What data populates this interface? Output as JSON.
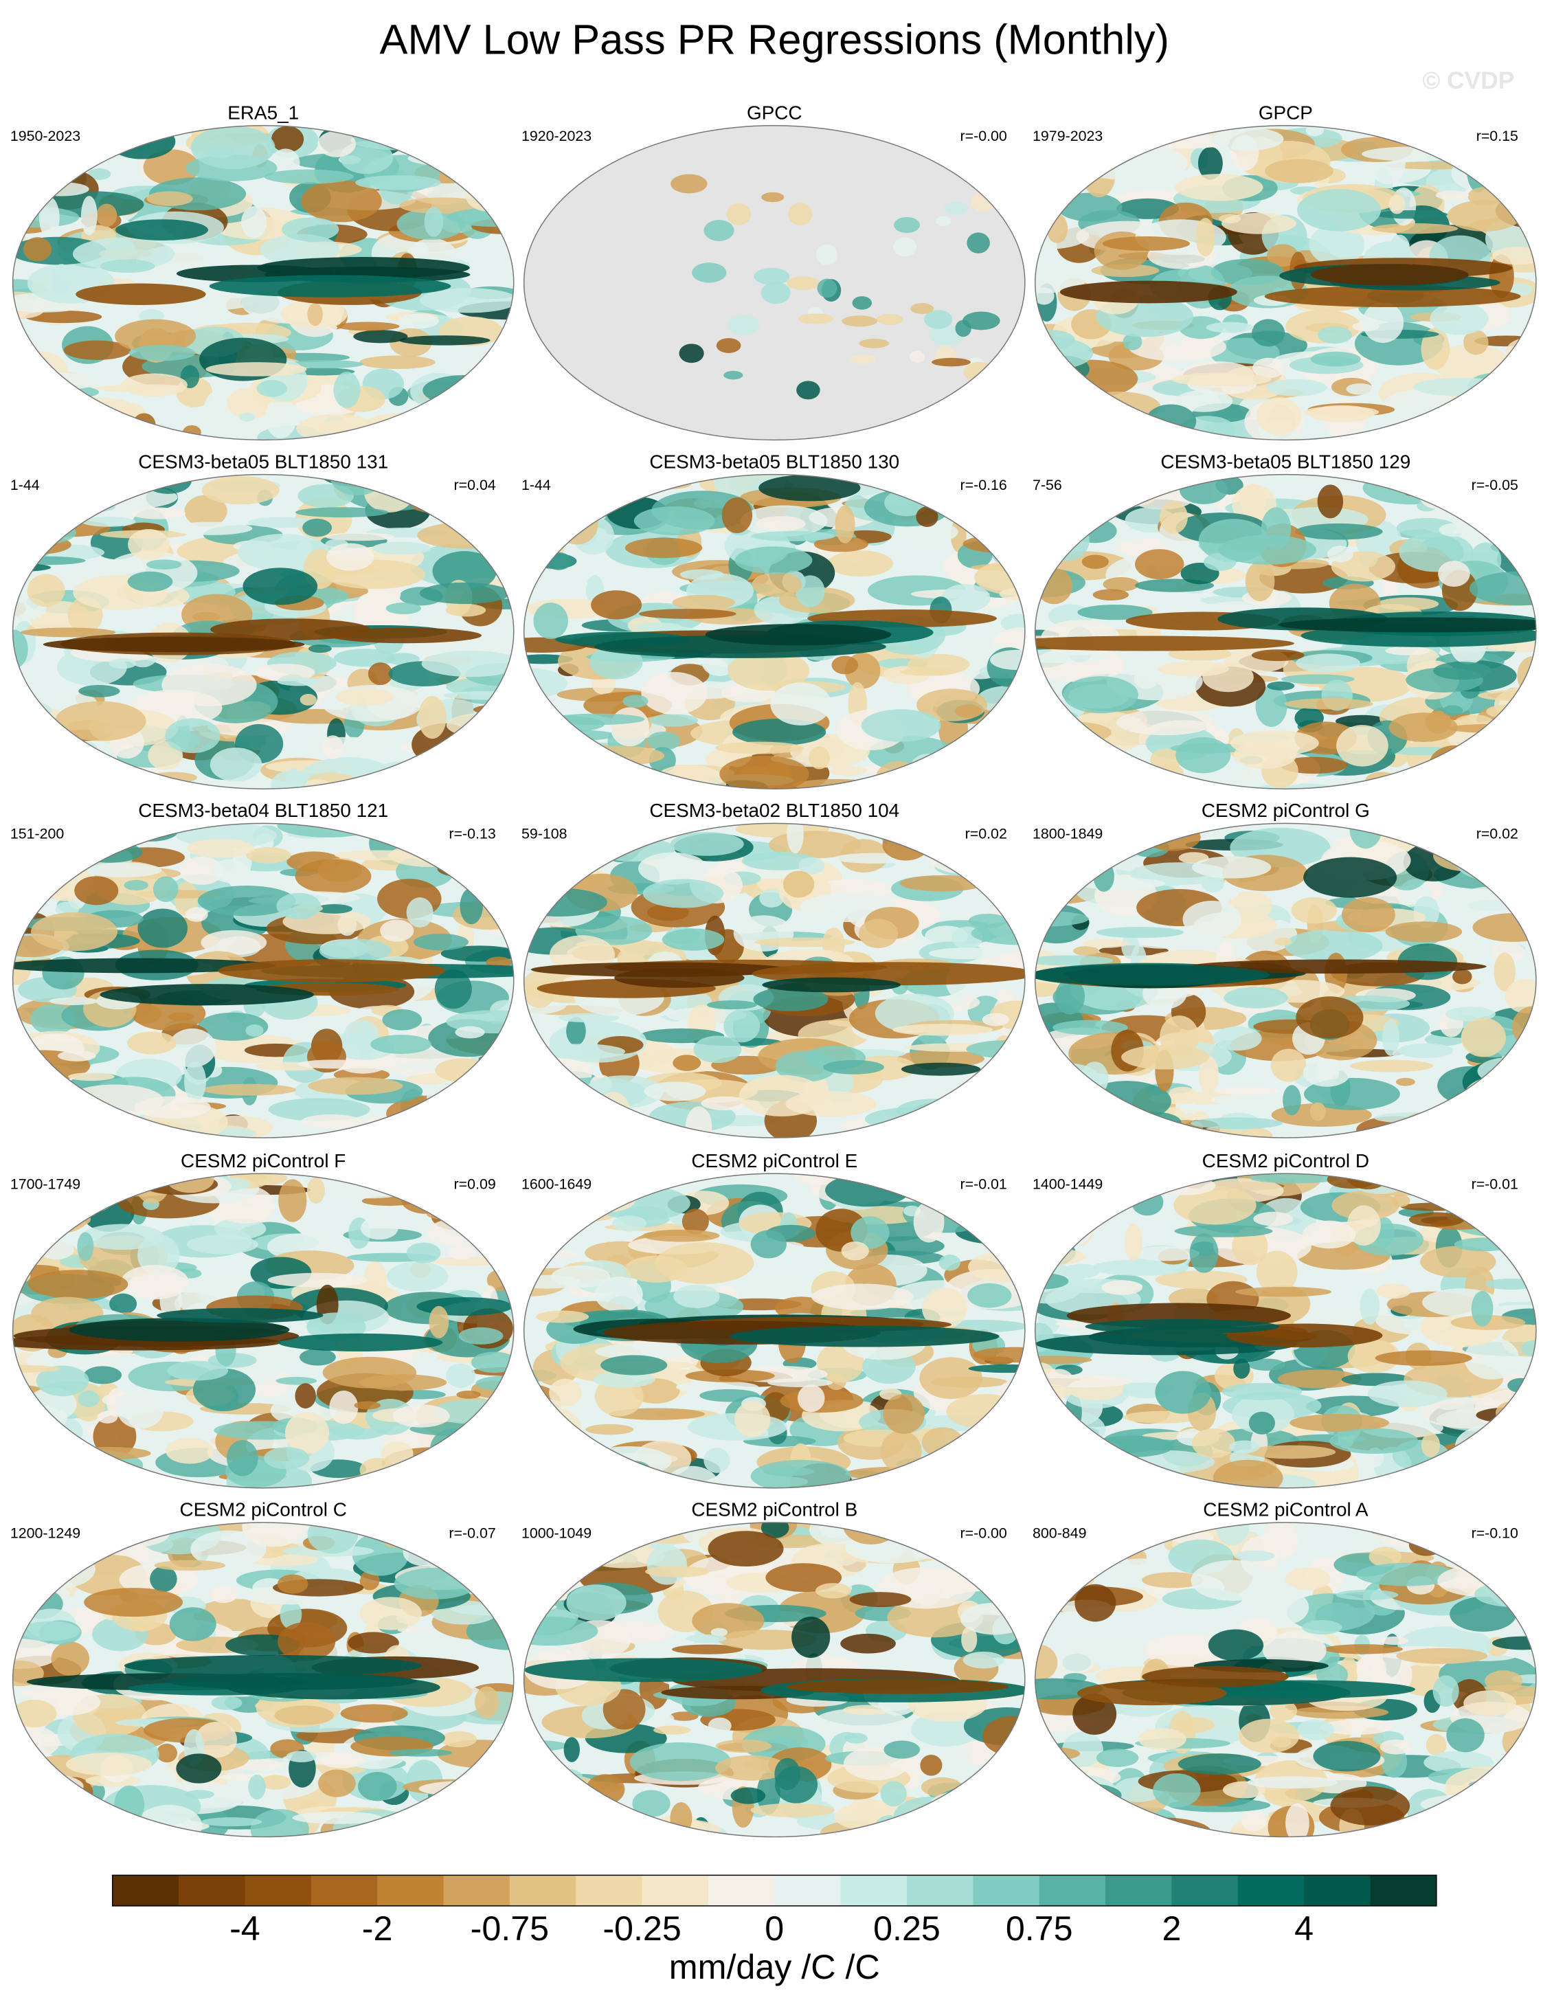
{
  "title": "AMV Low Pass PR Regressions (Monthly)",
  "watermark": "© CVDP",
  "panels": [
    {
      "title": "ERA5_1",
      "period": "1950-2023"
    },
    {
      "title": "GPCC",
      "period": "1920-2023",
      "r": "r=-0.00",
      "background": "#e4e4e4"
    },
    {
      "title": "GPCP",
      "period": "1979-2023",
      "r": "r=0.15"
    },
    {
      "title": "CESM3-beta05 BLT1850 131",
      "period": "1-44",
      "r": "r=0.04"
    },
    {
      "title": "CESM3-beta05 BLT1850 130",
      "period": "1-44",
      "r": "r=-0.16"
    },
    {
      "title": "CESM3-beta05 BLT1850 129",
      "period": "7-56",
      "r": "r=-0.05"
    },
    {
      "title": "CESM3-beta04 BLT1850 121",
      "period": "151-200",
      "r": "r=-0.13"
    },
    {
      "title": "CESM3-beta02 BLT1850 104",
      "period": "59-108",
      "r": "r=0.02"
    },
    {
      "title": "CESM2 piControl G",
      "period": "1800-1849",
      "r": "r=0.02"
    },
    {
      "title": "CESM2 piControl F",
      "period": "1700-1749",
      "r": "r=0.09"
    },
    {
      "title": "CESM2 piControl E",
      "period": "1600-1649",
      "r": "r=-0.01"
    },
    {
      "title": "CESM2 piControl D",
      "period": "1400-1449",
      "r": "r=-0.01"
    },
    {
      "title": "CESM2 piControl C",
      "period": "1200-1249",
      "r": "r=-0.07"
    },
    {
      "title": "CESM2 piControl B",
      "period": "1000-1049",
      "r": "r=-0.00"
    },
    {
      "title": "CESM2 piControl A",
      "period": "800-849",
      "r": "r=-0.10"
    }
  ],
  "colorbar": {
    "colors": [
      "#5a3005",
      "#7a4209",
      "#8f520e",
      "#a8661f",
      "#bf8334",
      "#d2a35c",
      "#e3c285",
      "#efd9a8",
      "#f5e8c9",
      "#f4f0e8",
      "#e6f2ef",
      "#c9ebe5",
      "#a6dfd7",
      "#7fcdc0",
      "#58b3a5",
      "#3a9a8b",
      "#1f8275",
      "#056b5e",
      "#03594c",
      "#023d30"
    ],
    "labels": [
      "-4",
      "-2",
      "-0.75",
      "-0.25",
      "0",
      "0.25",
      "0.75",
      "2",
      "4"
    ],
    "unit": "mm/day /C /C"
  }
}
